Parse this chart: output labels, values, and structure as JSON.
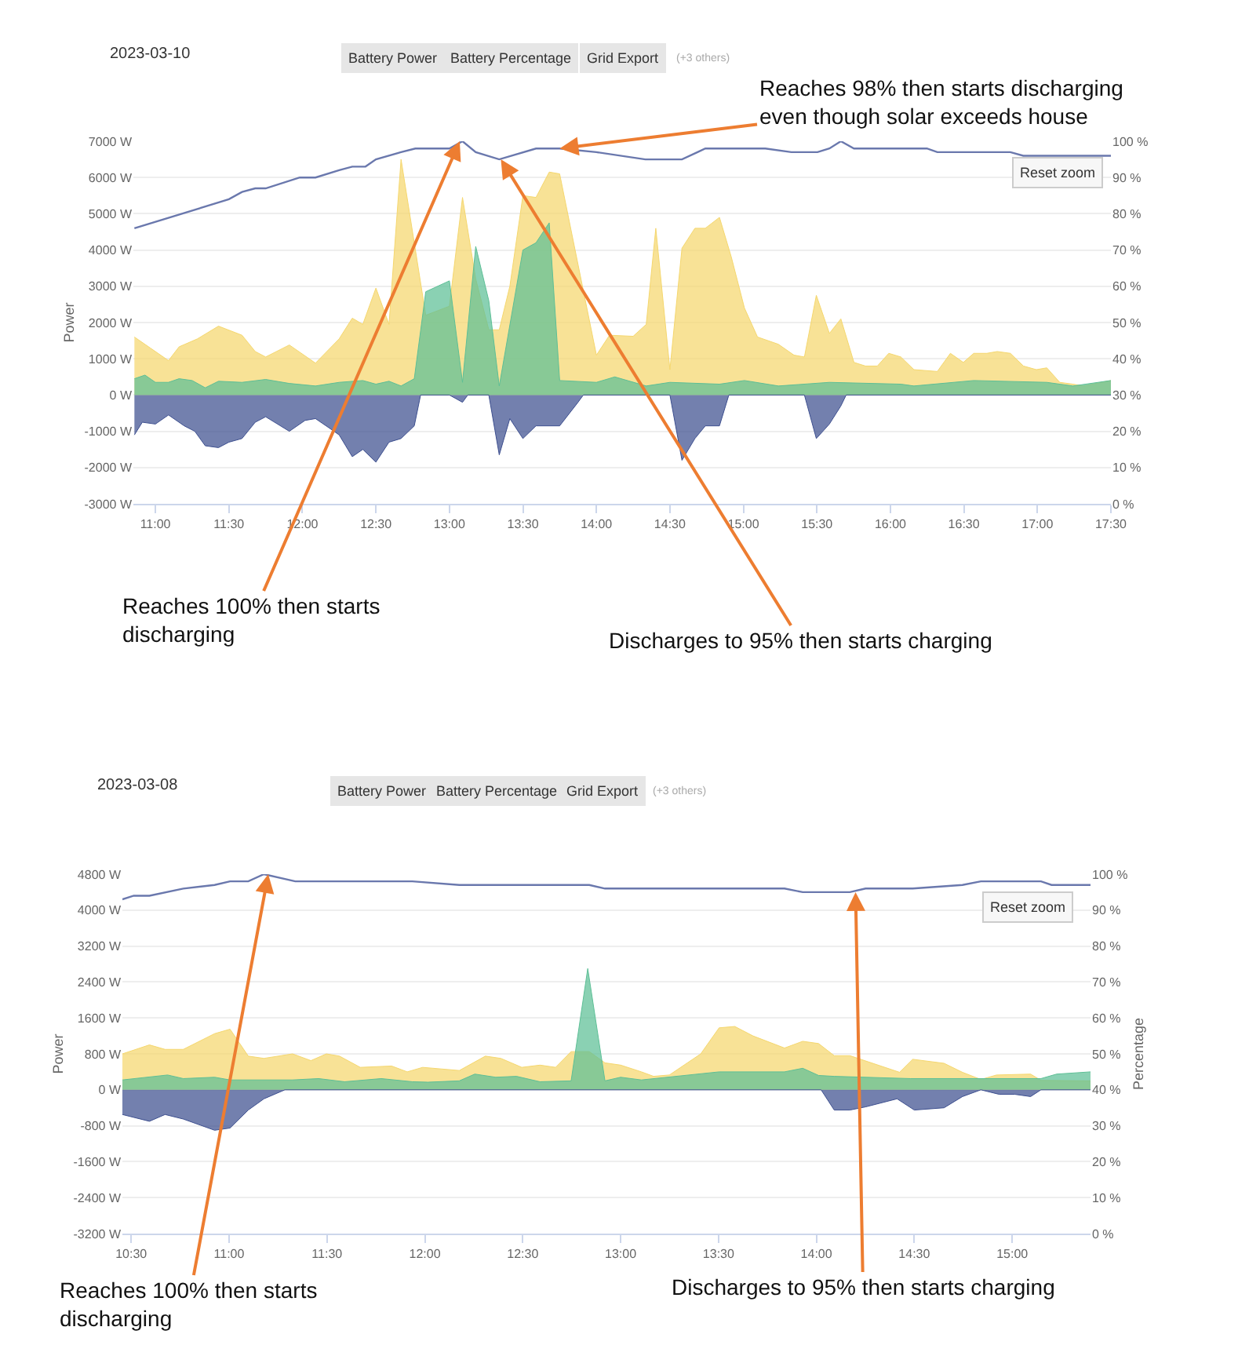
{
  "chart_data": [
    {
      "type": "area",
      "ylabel": "Power",
      "grid": "y",
      "marker": "none",
      "xlim": [
        10.85,
        17.5
      ],
      "ylim": [
        -3000,
        7000
      ],
      "y2lim": [
        0,
        100
      ],
      "xticks": [
        {
          "value": 11,
          "label": "11:00"
        },
        {
          "value": 11.5,
          "label": "11:30"
        },
        {
          "value": 12,
          "label": "12:00"
        },
        {
          "value": 12.5,
          "label": "12:30"
        },
        {
          "value": 13,
          "label": "13:00"
        },
        {
          "value": 13.5,
          "label": "13:30"
        },
        {
          "value": 14,
          "label": "14:00"
        },
        {
          "value": 14.5,
          "label": "14:30"
        },
        {
          "value": 15,
          "label": "15:00"
        },
        {
          "value": 15.5,
          "label": "15:30"
        },
        {
          "value": 16,
          "label": "16:00"
        },
        {
          "value": 16.5,
          "label": "16:30"
        },
        {
          "value": 17,
          "label": "17:00"
        },
        {
          "value": 17.5,
          "label": "17:30"
        }
      ],
      "yticks": [
        {
          "value": -3000,
          "label": "-3000 W"
        },
        {
          "value": -2000,
          "label": "-2000 W"
        },
        {
          "value": -1000,
          "label": "-1000 W"
        },
        {
          "value": 0,
          "label": "0 W"
        },
        {
          "value": 1000,
          "label": "1000 W"
        },
        {
          "value": 2000,
          "label": "2000 W"
        },
        {
          "value": 3000,
          "label": "3000 W"
        },
        {
          "value": 4000,
          "label": "4000 W"
        },
        {
          "value": 5000,
          "label": "5000 W"
        },
        {
          "value": 6000,
          "label": "6000 W"
        },
        {
          "value": 7000,
          "label": "7000 W"
        }
      ],
      "y2ticks": [
        {
          "value": 0,
          "label": "0 %"
        },
        {
          "value": 10,
          "label": "10 %"
        },
        {
          "value": 20,
          "label": "20 %"
        },
        {
          "value": 30,
          "label": "30 %"
        },
        {
          "value": 40,
          "label": "40 %"
        },
        {
          "value": 50,
          "label": "50 %"
        },
        {
          "value": 60,
          "label": "60 %"
        },
        {
          "value": 70,
          "label": "70 %"
        },
        {
          "value": 80,
          "label": "80 %"
        },
        {
          "value": 90,
          "label": "90 %"
        },
        {
          "value": 100,
          "label": "100 %"
        }
      ],
      "series": [
        {
          "color": "#f5d76e",
          "x": [
            10.857,
            10.964,
            11.089,
            11.161,
            11.286,
            11.429,
            11.589,
            11.679,
            11.75,
            11.911,
            12.089,
            12.25,
            12.339,
            12.411,
            12.5,
            12.589,
            12.671,
            12.839,
            13.0,
            13.089,
            13.179,
            13.268,
            13.339,
            13.411,
            13.5,
            13.589,
            13.679,
            13.75,
            14.0,
            14.089,
            14.25,
            14.339,
            14.404,
            14.5,
            14.582,
            14.67,
            14.741,
            14.837,
            14.918,
            15.007,
            15.096,
            15.238,
            15.344,
            15.415,
            15.496,
            15.585,
            15.663,
            15.752,
            15.83,
            15.911,
            15.989,
            16.071,
            16.16,
            16.319,
            16.408,
            16.496,
            16.567,
            16.656,
            16.727,
            16.816,
            16.905,
            16.993,
            17.064,
            17.152,
            17.241,
            17.312,
            17.5
          ],
          "values": [
            1600,
            1300,
            950,
            1330,
            1550,
            1900,
            1650,
            1200,
            1050,
            1380,
            880,
            1550,
            2120,
            1950,
            2950,
            1950,
            6500,
            2200,
            2450,
            5450,
            3200,
            1800,
            1800,
            3000,
            5500,
            5450,
            6150,
            6100,
            1100,
            1650,
            1620,
            1950,
            4600,
            700,
            4050,
            4600,
            4600,
            4900,
            3800,
            2400,
            1600,
            1400,
            1100,
            1050,
            2750,
            1700,
            2100,
            900,
            800,
            800,
            1150,
            1050,
            700,
            650,
            1150,
            900,
            1150,
            1150,
            1200,
            1150,
            800,
            700,
            750,
            350,
            300,
            250,
            400
          ]
        },
        {
          "color": "#5dbf96",
          "x": [
            10.857,
            10.929,
            11.0,
            11.089,
            11.161,
            11.25,
            11.339,
            11.429,
            11.589,
            11.75,
            11.911,
            12.089,
            12.25,
            12.411,
            12.5,
            12.589,
            12.671,
            12.761,
            12.839,
            13.0,
            13.089,
            13.179,
            13.268,
            13.339,
            13.5,
            13.589,
            13.679,
            13.75,
            14.0,
            14.125,
            14.339,
            14.5,
            14.837,
            15.007,
            15.238,
            15.585,
            16.071,
            16.16,
            16.567,
            17.064,
            17.241,
            17.5
          ],
          "values": [
            450,
            550,
            350,
            350,
            450,
            400,
            200,
            380,
            350,
            430,
            320,
            250,
            350,
            400,
            300,
            380,
            250,
            450,
            2850,
            3150,
            350,
            4100,
            2600,
            250,
            4000,
            4200,
            4750,
            400,
            350,
            500,
            250,
            350,
            300,
            400,
            250,
            350,
            300,
            250,
            400,
            350,
            250,
            400
          ]
        },
        {
          "color": "#3d4f8f",
          "x": [
            10.857,
            10.911,
            11.0,
            11.089,
            11.196,
            11.268,
            11.339,
            11.429,
            11.5,
            11.589,
            11.679,
            11.75,
            11.911,
            12.018,
            12.089,
            12.179,
            12.25,
            12.339,
            12.411,
            12.5,
            12.589,
            12.671,
            12.761,
            12.804,
            13.0,
            13.089,
            13.125,
            13.268,
            13.339,
            13.411,
            13.5,
            13.589,
            13.75,
            13.875,
            13.911,
            14.5,
            14.582,
            14.67,
            14.741,
            14.837,
            14.901,
            15.415,
            15.496,
            15.585,
            15.663,
            15.699,
            17.5
          ],
          "values": [
            -1100,
            -750,
            -800,
            -550,
            -850,
            -1000,
            -1400,
            -1450,
            -1300,
            -1200,
            -750,
            -600,
            -1000,
            -700,
            -650,
            -900,
            -1100,
            -1700,
            -1500,
            -1850,
            -1300,
            -1200,
            -850,
            0,
            0,
            -200,
            0,
            0,
            -1650,
            -650,
            -1200,
            -850,
            -850,
            -200,
            0,
            0,
            -1800,
            -1200,
            -850,
            -850,
            0,
            0,
            -1200,
            -800,
            -300,
            0,
            0
          ]
        },
        {
          "type": "line",
          "axis": "y2",
          "color": "#6a78ad",
          "x": [
            10.857,
            11.5,
            11.589,
            11.679,
            11.75,
            11.982,
            12.089,
            12.25,
            12.339,
            12.429,
            12.5,
            12.671,
            12.768,
            13.0,
            13.089,
            13.179,
            13.339,
            13.589,
            13.75,
            14.0,
            14.333,
            14.582,
            14.688,
            14.741,
            15.149,
            15.326,
            15.504,
            15.585,
            15.663,
            15.752,
            16.248,
            16.319,
            16.816,
            16.904,
            17.5
          ],
          "values": [
            76,
            84,
            86,
            87,
            87,
            90,
            90,
            92,
            93,
            93,
            95,
            97,
            98,
            98,
            100,
            97,
            95,
            98,
            98,
            97,
            95,
            95,
            97,
            98,
            98,
            97,
            97,
            98,
            100,
            98,
            98,
            97,
            97,
            96,
            96
          ]
        }
      ],
      "annotations": [
        "2023-03-10",
        "Battery Power",
        "Battery Percentage",
        "Grid Export",
        "(+3 others)",
        "Reset zoom",
        {
          "text": "Reaches 98% then starts discharging even though solar exceeds house",
          "x": 13.75,
          "y": 6800
        },
        {
          "text": "Reaches 100% then starts discharging",
          "x": 13.07,
          "y": 7000
        },
        {
          "text": "Discharges to 95% then starts charging",
          "x": 13.35,
          "y": 6500
        }
      ]
    },
    {
      "type": "area",
      "ylabel": "Power",
      "y2label": "Percentage",
      "grid": "y",
      "marker": "none",
      "xlim": [
        10.455,
        15.4
      ],
      "ylim": [
        -3200,
        4800
      ],
      "y2lim": [
        0,
        100
      ],
      "xticks": [
        {
          "value": 10.5,
          "label": "10:30"
        },
        {
          "value": 11,
          "label": "11:00"
        },
        {
          "value": 11.5,
          "label": "11:30"
        },
        {
          "value": 12,
          "label": "12:00"
        },
        {
          "value": 12.5,
          "label": "12:30"
        },
        {
          "value": 13,
          "label": "13:00"
        },
        {
          "value": 13.5,
          "label": "13:30"
        },
        {
          "value": 14,
          "label": "14:00"
        },
        {
          "value": 14.5,
          "label": "14:30"
        },
        {
          "value": 15,
          "label": "15:00"
        }
      ],
      "yticks": [
        {
          "value": -3200,
          "label": "-3200 W"
        },
        {
          "value": -2400,
          "label": "-2400 W"
        },
        {
          "value": -1600,
          "label": "-1600 W"
        },
        {
          "value": -800,
          "label": "-800 W"
        },
        {
          "value": 0,
          "label": "0 W"
        },
        {
          "value": 800,
          "label": "800 W"
        },
        {
          "value": 1600,
          "label": "1600 W"
        },
        {
          "value": 2400,
          "label": "2400 W"
        },
        {
          "value": 3200,
          "label": "3200 W"
        },
        {
          "value": 4000,
          "label": "4000 W"
        },
        {
          "value": 4800,
          "label": "4800 W"
        }
      ],
      "y2ticks": [
        {
          "value": 0,
          "label": "0 %"
        },
        {
          "value": 10,
          "label": "10 %"
        },
        {
          "value": 20,
          "label": "20 %"
        },
        {
          "value": 30,
          "label": "30 %"
        },
        {
          "value": 40,
          "label": "40 %"
        },
        {
          "value": 50,
          "label": "50 %"
        },
        {
          "value": 60,
          "label": "60 %"
        },
        {
          "value": 70,
          "label": "70 %"
        },
        {
          "value": 80,
          "label": "80 %"
        },
        {
          "value": 90,
          "label": "90 %"
        },
        {
          "value": 100,
          "label": "100 %"
        }
      ],
      "series": [
        {
          "color": "#f5d76e",
          "x": [
            10.455,
            10.593,
            10.673,
            10.766,
            10.926,
            11.005,
            11.098,
            11.178,
            11.324,
            11.418,
            11.497,
            11.564,
            11.67,
            11.83,
            11.91,
            11.989,
            12.176,
            12.309,
            12.388,
            12.495,
            12.588,
            12.668,
            12.747,
            12.84,
            12.92,
            13.0,
            13.106,
            13.168,
            13.249,
            13.409,
            13.503,
            13.583,
            13.676,
            13.837,
            13.93,
            14.011,
            14.091,
            14.171,
            14.425,
            14.492,
            14.652,
            14.746,
            14.84,
            14.92,
            15.094,
            15.147,
            15.4
          ],
          "values": [
            800,
            1000,
            900,
            900,
            1250,
            1350,
            750,
            700,
            800,
            650,
            800,
            750,
            500,
            530,
            400,
            500,
            430,
            750,
            700,
            500,
            550,
            500,
            850,
            850,
            600,
            550,
            400,
            300,
            330,
            800,
            1380,
            1410,
            1200,
            930,
            1080,
            1030,
            760,
            760,
            390,
            680,
            590,
            390,
            230,
            330,
            350,
            210,
            200
          ]
        },
        {
          "color": "#5dbf96",
          "x": [
            10.455,
            10.686,
            10.766,
            10.926,
            11.005,
            11.324,
            11.457,
            11.59,
            11.777,
            11.936,
            12.016,
            12.176,
            12.255,
            12.362,
            12.468,
            12.588,
            12.747,
            12.832,
            12.92,
            13.0,
            13.106,
            13.503,
            13.837,
            13.93,
            14.011,
            14.091,
            14.479,
            15.147,
            15.227,
            15.4
          ],
          "values": [
            220,
            330,
            250,
            280,
            220,
            220,
            250,
            180,
            250,
            180,
            170,
            200,
            350,
            280,
            300,
            180,
            200,
            2700,
            200,
            280,
            220,
            400,
            400,
            480,
            320,
            300,
            250,
            250,
            350,
            400
          ]
        },
        {
          "color": "#3d4f8f",
          "x": [
            10.455,
            10.593,
            10.673,
            10.766,
            10.926,
            11.005,
            11.098,
            11.178,
            11.285,
            14.024,
            14.091,
            14.171,
            14.251,
            14.412,
            14.5,
            14.652,
            14.746,
            14.84,
            14.933,
            15.013,
            15.094,
            15.147,
            15.4
          ],
          "values": [
            -550,
            -700,
            -550,
            -650,
            -900,
            -850,
            -450,
            -200,
            0,
            0,
            -450,
            -450,
            -380,
            -200,
            -450,
            -400,
            -150,
            0,
            -100,
            -100,
            -150,
            0,
            0
          ]
        },
        {
          "type": "line",
          "axis": "y2",
          "color": "#6a78ad",
          "x": [
            10.455,
            10.513,
            10.593,
            10.766,
            10.926,
            11.005,
            11.098,
            11.178,
            11.338,
            11.936,
            12.176,
            12.84,
            12.92,
            13.106,
            13.837,
            13.93,
            14.171,
            14.251,
            14.492,
            14.746,
            14.84,
            15.147,
            15.201,
            15.4
          ],
          "values": [
            93,
            94,
            94,
            96,
            97,
            98,
            98,
            100,
            98,
            98,
            97,
            97,
            96,
            96,
            96,
            95,
            95,
            96,
            96,
            97,
            98,
            98,
            97,
            97
          ]
        }
      ],
      "annotations": [
        "2023-03-08",
        "Battery Power",
        "Battery Percentage",
        "Grid Export",
        "(+3 others)",
        "Reset zoom",
        {
          "text": "Reaches 100% then starts discharging",
          "x": 11.2,
          "y": 4800
        },
        {
          "text": "Discharges to 95% then starts charging",
          "x": 14.2,
          "y": 4400
        }
      ]
    }
  ]
}
